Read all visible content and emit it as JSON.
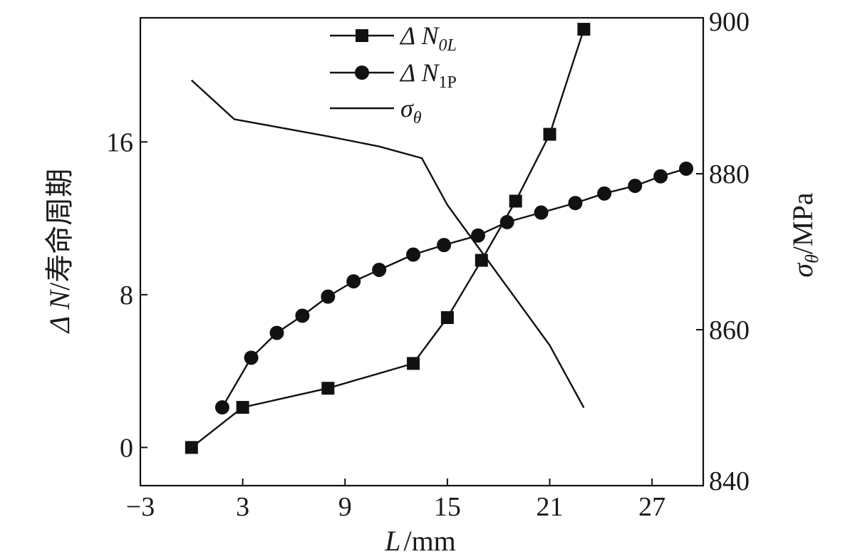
{
  "chart_data": {
    "type": "line",
    "x_label": {
      "symbol": "L",
      "unit": "/mm"
    },
    "y_left_label": {
      "prefix": "Δ N",
      "unit": "/寿命周期"
    },
    "y_right_label": {
      "symbol": "σ",
      "sub": "θ",
      "unit": "/MPa"
    },
    "x_range": [
      -3,
      30
    ],
    "x_ticks": [
      -3,
      3,
      9,
      15,
      21,
      27
    ],
    "y_left_range": [
      -2,
      22.5
    ],
    "y_left_ticks": [
      0,
      8,
      16
    ],
    "y_right_range": [
      840,
      900
    ],
    "y_right_ticks": [
      840,
      860,
      880,
      900
    ],
    "grid": false,
    "legend_position": "top-center",
    "series": [
      {
        "key": "dN0L",
        "legend_main": "Δ N",
        "legend_sub": "0L",
        "marker": "square",
        "axis": "left",
        "x": [
          0,
          3,
          8,
          13,
          15,
          17,
          19,
          21,
          23
        ],
        "y": [
          0,
          2.1,
          3.1,
          4.4,
          6.8,
          9.8,
          12.9,
          16.4,
          21.9
        ]
      },
      {
        "key": "dN1P",
        "legend_main": "Δ N",
        "legend_sub": "1P",
        "marker": "circle",
        "axis": "left",
        "x": [
          1.8,
          3.5,
          5,
          6.5,
          8,
          9.5,
          11,
          13,
          14.8,
          16.8,
          18.5,
          20.5,
          22.5,
          24.2,
          26,
          27.5,
          29
        ],
        "y": [
          2.1,
          4.7,
          6,
          6.9,
          7.9,
          8.7,
          9.3,
          10.1,
          10.6,
          11.1,
          11.8,
          12.3,
          12.8,
          13.3,
          13.7,
          14.2,
          14.6
        ]
      },
      {
        "key": "sigma",
        "legend_main": "σ",
        "legend_sub": "θ",
        "marker": "none",
        "axis": "right",
        "x": [
          0,
          2.5,
          5,
          8,
          11,
          13.5,
          15,
          17,
          19,
          21,
          23
        ],
        "y": [
          892,
          887,
          886,
          884.8,
          883.5,
          882,
          876,
          870,
          864,
          858,
          850
        ]
      }
    ]
  }
}
